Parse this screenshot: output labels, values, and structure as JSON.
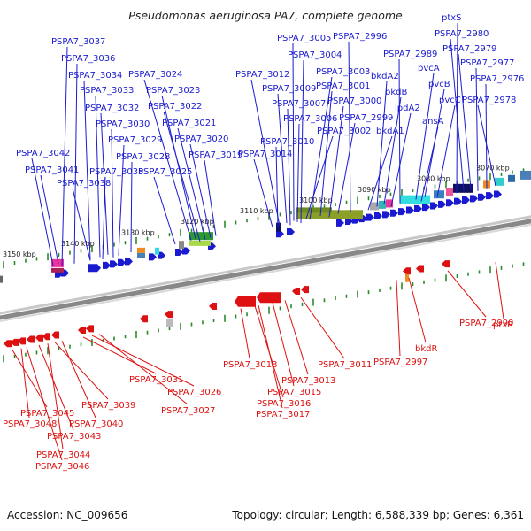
{
  "title": "Pseudomonas aeruginosa PA7, complete genome",
  "accession": "Accession: NC_009656",
  "topology": "Topology: circular; Length: 6,588,339 bp; Genes: 6,361",
  "colors": {
    "forward": "#1a1ad0",
    "reverse": "#dd1111",
    "backbone": "#888888",
    "tick": "#2a8a2a"
  },
  "ticks": [
    {
      "label": "3150 kbp"
    },
    {
      "label": "3140 kbp"
    },
    {
      "label": "3130 kbp"
    },
    {
      "label": "3120 kbp"
    },
    {
      "label": "3110 kbp"
    },
    {
      "label": "3100 kbp"
    },
    {
      "label": "3090 kbp"
    },
    {
      "label": "3080 kbp"
    },
    {
      "label": "3070 kbp"
    }
  ],
  "forward_labels": [
    {
      "text": "PSPA7_3037"
    },
    {
      "text": "PSPA7_3036"
    },
    {
      "text": "PSPA7_3034"
    },
    {
      "text": "PSPA7_3033"
    },
    {
      "text": "PSPA7_3032"
    },
    {
      "text": "PSPA7_3030"
    },
    {
      "text": "PSPA7_3029"
    },
    {
      "text": "PSPA7_3028"
    },
    {
      "text": "PSPA7_3042"
    },
    {
      "text": "PSPA7_3041"
    },
    {
      "text": "PSPA7_3035"
    },
    {
      "text": "PSPA7_3038"
    },
    {
      "text": "PSPA7_3025"
    },
    {
      "text": "PSPA7_3024"
    },
    {
      "text": "PSPA7_3023"
    },
    {
      "text": "PSPA7_3022"
    },
    {
      "text": "PSPA7_3021"
    },
    {
      "text": "PSPA7_3020"
    },
    {
      "text": "PSPA7_3019"
    },
    {
      "text": "PSPA7_3005"
    },
    {
      "text": "PSPA7_3004"
    },
    {
      "text": "PSPA7_3012"
    },
    {
      "text": "PSPA7_3003"
    },
    {
      "text": "PSPA7_3009"
    },
    {
      "text": "PSPA7_3001"
    },
    {
      "text": "PSPA7_3007"
    },
    {
      "text": "PSPA7_3000"
    },
    {
      "text": "PSPA7_3006"
    },
    {
      "text": "PSPA7_2999"
    },
    {
      "text": "PSPA7_3002"
    },
    {
      "text": "PSPA7_3010"
    },
    {
      "text": "PSPA7_3014"
    },
    {
      "text": "PSPA7_2996"
    },
    {
      "text": "bkdA2"
    },
    {
      "text": "bkdB"
    },
    {
      "text": "lpdA2"
    },
    {
      "text": "bkdA1"
    },
    {
      "text": "PSPA7_2989"
    },
    {
      "text": "pvcA"
    },
    {
      "text": "pvcB"
    },
    {
      "text": "ansA"
    },
    {
      "text": "pvcC"
    },
    {
      "text": "ptxS"
    },
    {
      "text": "PSPA7_2980"
    },
    {
      "text": "PSPA7_2979"
    },
    {
      "text": "PSPA7_2977"
    },
    {
      "text": "PSPA7_2976"
    },
    {
      "text": "PSPA7_2978"
    }
  ],
  "reverse_labels": [
    {
      "text": "PSPA7_3045"
    },
    {
      "text": "PSPA7_3048"
    },
    {
      "text": "PSPA7_3043"
    },
    {
      "text": "PSPA7_3044"
    },
    {
      "text": "PSPA7_3046"
    },
    {
      "text": "PSPA7_3039"
    },
    {
      "text": "PSPA7_3040"
    },
    {
      "text": "PSPA7_3031"
    },
    {
      "text": "PSPA7_3026"
    },
    {
      "text": "PSPA7_3027"
    },
    {
      "text": "PSPA7_3018"
    },
    {
      "text": "PSPA7_3016"
    },
    {
      "text": "PSPA7_3017"
    },
    {
      "text": "PSPA7_3015"
    },
    {
      "text": "PSPA7_3013"
    },
    {
      "text": "PSPA7_3011"
    },
    {
      "text": "PSPA7_2997"
    },
    {
      "text": "bkdR"
    },
    {
      "text": "PSPA7_2990"
    },
    {
      "text": "ptxR"
    }
  ]
}
